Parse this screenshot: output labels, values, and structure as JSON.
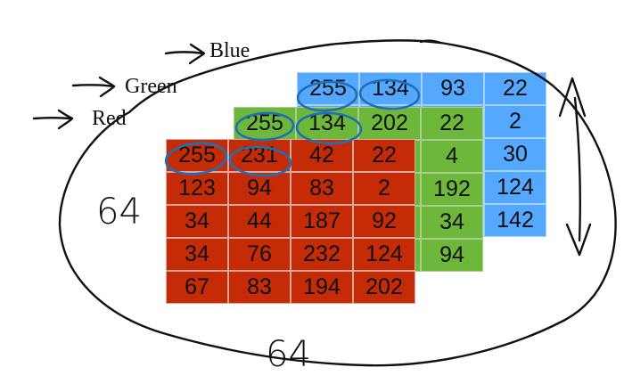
{
  "channels": {
    "blue": {
      "label": "Blue",
      "color": "#54a8ff",
      "rows": [
        [
          "255",
          "134",
          "93",
          "22"
        ],
        [
          "",
          "",
          "",
          "2"
        ],
        [
          "",
          "",
          "",
          "30"
        ],
        [
          "",
          "",
          "",
          "124"
        ],
        [
          "",
          "",
          "",
          "142"
        ]
      ]
    },
    "green": {
      "label": "Green",
      "color": "#6db73a",
      "rows": [
        [
          "255",
          "134",
          "202",
          "22"
        ],
        [
          "",
          "",
          "",
          "4"
        ],
        [
          "",
          "",
          "",
          "192"
        ],
        [
          "",
          "",
          "",
          "34"
        ],
        [
          "",
          "",
          "",
          "94"
        ]
      ]
    },
    "red": {
      "label": "Red",
      "color": "#c62b08",
      "rows": [
        [
          "255",
          "231",
          "42",
          "22"
        ],
        [
          "123",
          "94",
          "83",
          "2"
        ],
        [
          "34",
          "44",
          "187",
          "92"
        ],
        [
          "34",
          "76",
          "232",
          "124"
        ],
        [
          "67",
          "83",
          "194",
          "202"
        ]
      ]
    }
  },
  "annotations": {
    "height": "64",
    "width": "64"
  }
}
